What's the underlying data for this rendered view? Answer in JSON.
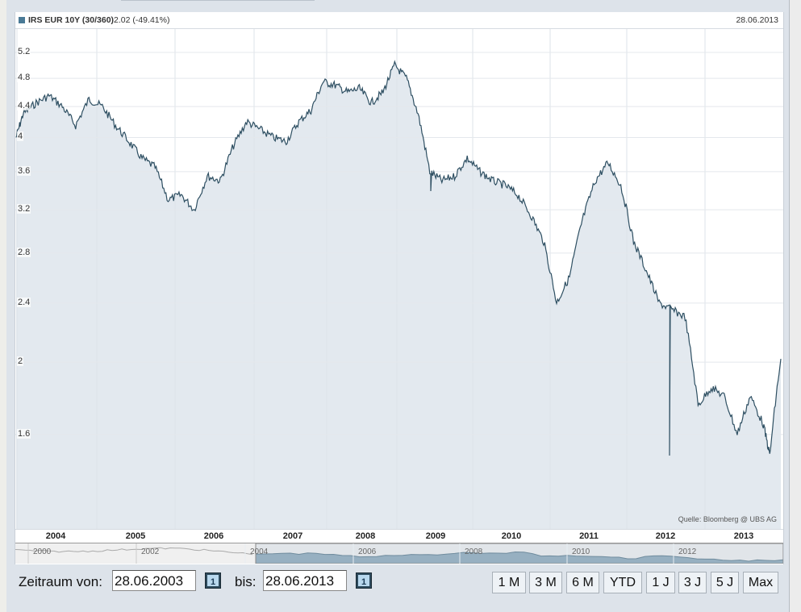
{
  "header": {
    "title": "IRS EUR 10Y (30/360)",
    "value": "2.02 (-49.41%)",
    "date": "28.06.2013",
    "legend_color": "#4a7a96"
  },
  "source": "Quelle: Bloomberg @ UBS AG",
  "navigator": {
    "labels": [
      "2000",
      "2002",
      "2004",
      "2006",
      "2008",
      "2010",
      "2012"
    ]
  },
  "controls": {
    "from_label": "Zeitraum von:",
    "from_value": "28.06.2003",
    "to_label": "bis:",
    "to_value": "28.06.2013",
    "calendar_icon": "calendar-icon",
    "range_buttons": [
      "1 M",
      "3 M",
      "6 M",
      "YTD",
      "1 J",
      "3 J",
      "5 J",
      "Max"
    ]
  },
  "colors": {
    "line": "#2e4f62",
    "area": "#e3e9ef",
    "navigator_fill": "#8eaabb"
  },
  "chart_data": {
    "type": "area",
    "title": "IRS EUR 10Y (30/360)",
    "subtitle": "2.02 (-49.41%)",
    "xlabel": "",
    "ylabel": "",
    "y_scale": "log",
    "ylim": [
      1.2,
      5.3
    ],
    "yticks": [
      5.2,
      4.8,
      4.4,
      4,
      3.6,
      3.2,
      2.8,
      2.4,
      2,
      1.6
    ],
    "xticks": [
      "2004",
      "2005",
      "2006",
      "2007",
      "2008",
      "2009",
      "2010",
      "2011",
      "2012",
      "2013"
    ],
    "grid": true,
    "legend": [
      "IRS EUR 10Y (30/360)"
    ],
    "annotations": [
      "Quelle: Bloomberg @ UBS AG"
    ],
    "x": [
      "2003-06",
      "2003-08",
      "2003-10",
      "2003-12",
      "2004-02",
      "2004-04",
      "2004-06",
      "2004-08",
      "2004-10",
      "2004-12",
      "2005-02",
      "2005-04",
      "2005-06",
      "2005-08",
      "2005-10",
      "2005-12",
      "2006-02",
      "2006-04",
      "2006-06",
      "2006-08",
      "2006-10",
      "2006-12",
      "2007-02",
      "2007-04",
      "2007-06",
      "2007-08",
      "2007-10",
      "2007-12",
      "2008-02",
      "2008-04",
      "2008-06",
      "2008-08",
      "2008-10",
      "2008-12",
      "2009-02",
      "2009-04",
      "2009-06",
      "2009-08",
      "2009-10",
      "2009-12",
      "2010-02",
      "2010-04",
      "2010-06",
      "2010-08",
      "2010-10",
      "2010-12",
      "2011-02",
      "2011-04",
      "2011-06",
      "2011-08",
      "2011-10",
      "2011-12",
      "2012-02",
      "2012-04",
      "2012-06",
      "2012-08",
      "2012-10",
      "2012-12",
      "2013-02",
      "2013-04",
      "2013-05",
      "2013-06"
    ],
    "series": [
      {
        "name": "IRS EUR 10Y (30/360)",
        "values": [
          4.0,
          4.3,
          4.45,
          4.55,
          4.4,
          4.15,
          4.5,
          4.4,
          4.15,
          3.95,
          3.75,
          3.65,
          3.3,
          3.35,
          3.2,
          3.55,
          3.5,
          3.9,
          4.2,
          4.1,
          4.0,
          3.95,
          4.2,
          4.35,
          4.75,
          4.7,
          4.6,
          4.65,
          4.45,
          4.6,
          5.0,
          4.8,
          4.3,
          3.6,
          3.5,
          3.55,
          3.75,
          3.6,
          3.5,
          3.45,
          3.35,
          3.15,
          2.9,
          2.4,
          2.6,
          3.1,
          3.5,
          3.7,
          3.45,
          2.9,
          2.65,
          2.4,
          2.35,
          2.3,
          1.75,
          1.85,
          1.8,
          1.6,
          1.8,
          1.65,
          1.5,
          2.02
        ]
      }
    ]
  }
}
